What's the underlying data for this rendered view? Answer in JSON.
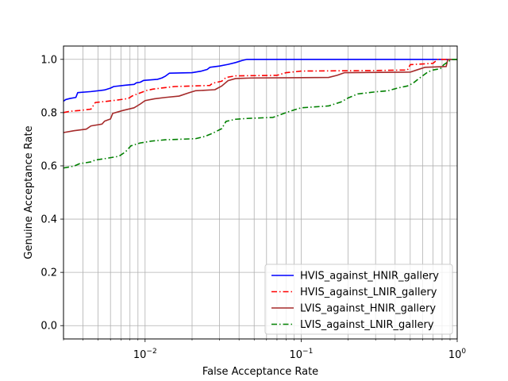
{
  "chart_data": {
    "type": "line",
    "title": "",
    "xlabel": "False Acceptance Rate",
    "ylabel": "Genuine Acceptance Rate",
    "xscale": "log",
    "xlim": [
      0.003,
      1.0
    ],
    "ylim": [
      -0.05,
      1.05
    ],
    "grid": true,
    "legend_position": "lower-right",
    "x_major_ticks": [
      0.01,
      0.1,
      1.0
    ],
    "x_major_tick_labels": [
      {
        "base": "10",
        "exp": "−2"
      },
      {
        "base": "10",
        "exp": "−1"
      },
      {
        "base": "10",
        "exp": "0"
      }
    ],
    "x_minor_ticks": [
      0.003,
      0.004,
      0.005,
      0.006,
      0.007,
      0.008,
      0.009,
      0.02,
      0.03,
      0.04,
      0.05,
      0.06,
      0.07,
      0.08,
      0.09,
      0.2,
      0.3,
      0.4,
      0.5,
      0.6,
      0.7,
      0.8,
      0.9
    ],
    "y_ticks": [
      0.0,
      0.2,
      0.4,
      0.6,
      0.8,
      1.0
    ],
    "y_tick_labels": [
      "0.0",
      "0.2",
      "0.4",
      "0.6",
      "0.8",
      "1.0"
    ],
    "series": [
      {
        "name": "HVIS_against_HNIR_gallery",
        "color": "#0000ff",
        "dash": "solid",
        "points": [
          [
            0.003,
            0.843
          ],
          [
            0.0031,
            0.849
          ],
          [
            0.0033,
            0.853
          ],
          [
            0.0036,
            0.857
          ],
          [
            0.0037,
            0.875
          ],
          [
            0.0045,
            0.879
          ],
          [
            0.0055,
            0.885
          ],
          [
            0.006,
            0.892
          ],
          [
            0.0063,
            0.898
          ],
          [
            0.0075,
            0.903
          ],
          [
            0.0085,
            0.906
          ],
          [
            0.0088,
            0.912
          ],
          [
            0.0093,
            0.914
          ],
          [
            0.0098,
            0.921
          ],
          [
            0.012,
            0.925
          ],
          [
            0.0128,
            0.93
          ],
          [
            0.0135,
            0.937
          ],
          [
            0.0143,
            0.948
          ],
          [
            0.02,
            0.95
          ],
          [
            0.023,
            0.956
          ],
          [
            0.025,
            0.962
          ],
          [
            0.026,
            0.97
          ],
          [
            0.03,
            0.975
          ],
          [
            0.034,
            0.981
          ],
          [
            0.038,
            0.988
          ],
          [
            0.042,
            0.996
          ],
          [
            0.045,
            1.0
          ],
          [
            1.0,
            1.0
          ]
        ]
      },
      {
        "name": "HVIS_against_LNIR_gallery",
        "color": "#ff0000",
        "dash": "dashdot",
        "points": [
          [
            0.003,
            0.8
          ],
          [
            0.0033,
            0.805
          ],
          [
            0.0038,
            0.808
          ],
          [
            0.0045,
            0.813
          ],
          [
            0.0048,
            0.838
          ],
          [
            0.0058,
            0.843
          ],
          [
            0.0068,
            0.848
          ],
          [
            0.0078,
            0.853
          ],
          [
            0.0083,
            0.863
          ],
          [
            0.0092,
            0.873
          ],
          [
            0.0102,
            0.883
          ],
          [
            0.0112,
            0.888
          ],
          [
            0.013,
            0.893
          ],
          [
            0.0155,
            0.898
          ],
          [
            0.026,
            0.902
          ],
          [
            0.027,
            0.91
          ],
          [
            0.031,
            0.918
          ],
          [
            0.033,
            0.932
          ],
          [
            0.038,
            0.938
          ],
          [
            0.07,
            0.94
          ],
          [
            0.08,
            0.95
          ],
          [
            0.09,
            0.953
          ],
          [
            0.1,
            0.956
          ],
          [
            0.3,
            0.958
          ],
          [
            0.48,
            0.96
          ],
          [
            0.5,
            0.98
          ],
          [
            0.7,
            0.985
          ],
          [
            0.75,
            1.0
          ],
          [
            1.0,
            1.0
          ]
        ]
      },
      {
        "name": "LVIS_against_HNIR_gallery",
        "color": "#a52a2a",
        "dash": "solid",
        "points": [
          [
            0.003,
            0.725
          ],
          [
            0.0035,
            0.732
          ],
          [
            0.0042,
            0.738
          ],
          [
            0.0045,
            0.75
          ],
          [
            0.0053,
            0.757
          ],
          [
            0.0055,
            0.768
          ],
          [
            0.006,
            0.776
          ],
          [
            0.0062,
            0.797
          ],
          [
            0.0072,
            0.808
          ],
          [
            0.0085,
            0.818
          ],
          [
            0.0093,
            0.832
          ],
          [
            0.01,
            0.845
          ],
          [
            0.0115,
            0.852
          ],
          [
            0.0135,
            0.857
          ],
          [
            0.0165,
            0.862
          ],
          [
            0.019,
            0.874
          ],
          [
            0.021,
            0.882
          ],
          [
            0.028,
            0.886
          ],
          [
            0.031,
            0.9
          ],
          [
            0.034,
            0.92
          ],
          [
            0.038,
            0.928
          ],
          [
            0.048,
            0.93
          ],
          [
            0.15,
            0.932
          ],
          [
            0.17,
            0.94
          ],
          [
            0.19,
            0.95
          ],
          [
            0.5,
            0.952
          ],
          [
            0.55,
            0.96
          ],
          [
            0.62,
            0.97
          ],
          [
            0.85,
            0.973
          ],
          [
            0.87,
            1.0
          ],
          [
            1.0,
            1.0
          ]
        ]
      },
      {
        "name": "LVIS_against_LNIR_gallery",
        "color": "#008000",
        "dash": "dashdot",
        "points": [
          [
            0.003,
            0.592
          ],
          [
            0.0035,
            0.599
          ],
          [
            0.0038,
            0.608
          ],
          [
            0.0045,
            0.615
          ],
          [
            0.0048,
            0.622
          ],
          [
            0.0055,
            0.627
          ],
          [
            0.0068,
            0.636
          ],
          [
            0.0075,
            0.653
          ],
          [
            0.0081,
            0.675
          ],
          [
            0.0093,
            0.686
          ],
          [
            0.011,
            0.693
          ],
          [
            0.0135,
            0.698
          ],
          [
            0.021,
            0.702
          ],
          [
            0.024,
            0.71
          ],
          [
            0.027,
            0.722
          ],
          [
            0.031,
            0.74
          ],
          [
            0.033,
            0.767
          ],
          [
            0.038,
            0.775
          ],
          [
            0.045,
            0.778
          ],
          [
            0.066,
            0.782
          ],
          [
            0.072,
            0.79
          ],
          [
            0.08,
            0.8
          ],
          [
            0.09,
            0.81
          ],
          [
            0.1,
            0.818
          ],
          [
            0.15,
            0.825
          ],
          [
            0.18,
            0.84
          ],
          [
            0.2,
            0.855
          ],
          [
            0.23,
            0.87
          ],
          [
            0.3,
            0.878
          ],
          [
            0.36,
            0.882
          ],
          [
            0.42,
            0.893
          ],
          [
            0.48,
            0.9
          ],
          [
            0.52,
            0.91
          ],
          [
            0.56,
            0.925
          ],
          [
            0.6,
            0.938
          ],
          [
            0.65,
            0.953
          ],
          [
            0.7,
            0.96
          ],
          [
            0.78,
            0.965
          ],
          [
            0.82,
            0.98
          ],
          [
            0.87,
            0.99
          ],
          [
            0.92,
            1.0
          ],
          [
            1.0,
            1.0
          ]
        ]
      }
    ]
  }
}
